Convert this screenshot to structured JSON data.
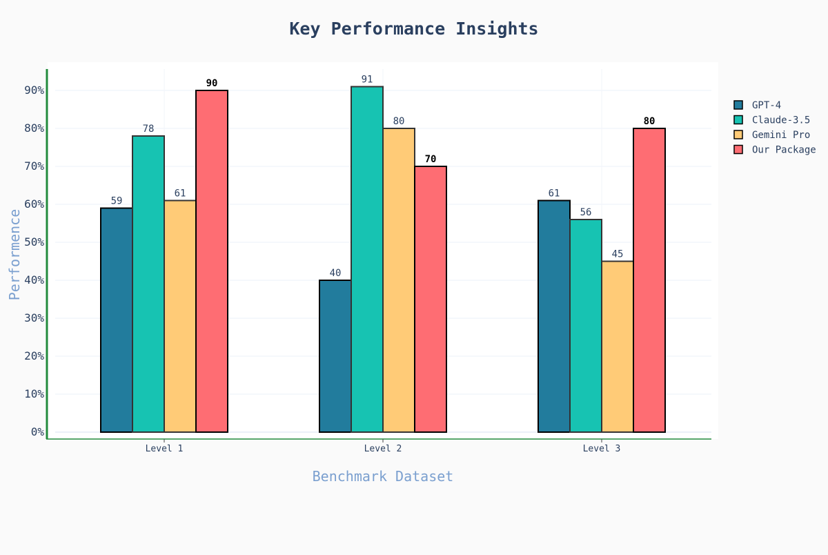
{
  "chart_data": {
    "type": "bar",
    "title": "Key Performance Insights",
    "xlabel": "Benchmark Dataset",
    "ylabel": "Performence",
    "categories": [
      "Level 1",
      "Level 2",
      "Level 3"
    ],
    "ylim": [
      0,
      95
    ],
    "yticks": [
      0,
      10,
      20,
      30,
      40,
      50,
      60,
      70,
      80,
      90
    ],
    "ytick_suffix": "%",
    "grid": true,
    "legend_position": "right",
    "series": [
      {
        "name": "GPT-4",
        "color": "#227c9d",
        "values": [
          59,
          40,
          61
        ]
      },
      {
        "name": "Claude-3.5",
        "color": "#17c3b2",
        "values": [
          78,
          91,
          56
        ]
      },
      {
        "name": "Gemini Pro",
        "color": "#ffcb77",
        "values": [
          61,
          80,
          45
        ]
      },
      {
        "name": "Our Package",
        "color": "#fe6d73",
        "values": [
          90,
          70,
          80
        ]
      }
    ],
    "highlight_series": "Our Package",
    "colors": {
      "background": "#fafafa",
      "plot_background": "#ffffff",
      "grid": "#ebf0f8",
      "axis_line": "#228b3c",
      "title": "#2a3f5f",
      "axis_title": "#7a9fcf"
    }
  }
}
